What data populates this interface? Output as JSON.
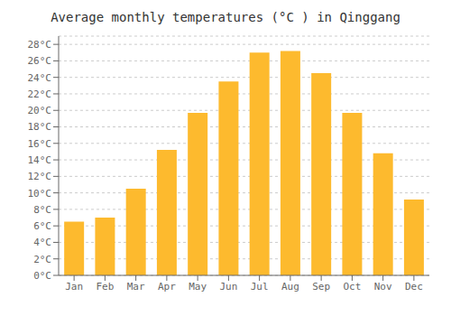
{
  "chart_data": {
    "type": "bar",
    "title": "Average monthly temperatures (°C ) in Qinggang",
    "categories": [
      "Jan",
      "Feb",
      "Mar",
      "Apr",
      "May",
      "Jun",
      "Jul",
      "Aug",
      "Sep",
      "Oct",
      "Nov",
      "Dec"
    ],
    "values": [
      6.5,
      7.0,
      10.5,
      15.2,
      19.7,
      23.5,
      27.0,
      27.2,
      24.5,
      19.7,
      14.8,
      9.2
    ],
    "color": "#FDBA2E",
    "ylim": [
      0,
      29
    ],
    "yticks": [
      {
        "value": 0,
        "label": "0°C"
      },
      {
        "value": 2,
        "label": "2°C"
      },
      {
        "value": 4,
        "label": "4°C"
      },
      {
        "value": 6,
        "label": "6°C"
      },
      {
        "value": 8,
        "label": "8°C"
      },
      {
        "value": 10,
        "label": "10°C"
      },
      {
        "value": 12,
        "label": "12°C"
      },
      {
        "value": 14,
        "label": "14°C"
      },
      {
        "value": 16,
        "label": "16°C"
      },
      {
        "value": 18,
        "label": "18°C"
      },
      {
        "value": 20,
        "label": "20°C"
      },
      {
        "value": 22,
        "label": "22°C"
      },
      {
        "value": 24,
        "label": "24°C"
      },
      {
        "value": 26,
        "label": "26°C"
      },
      {
        "value": 28,
        "label": "28°C"
      }
    ],
    "grid": true
  }
}
